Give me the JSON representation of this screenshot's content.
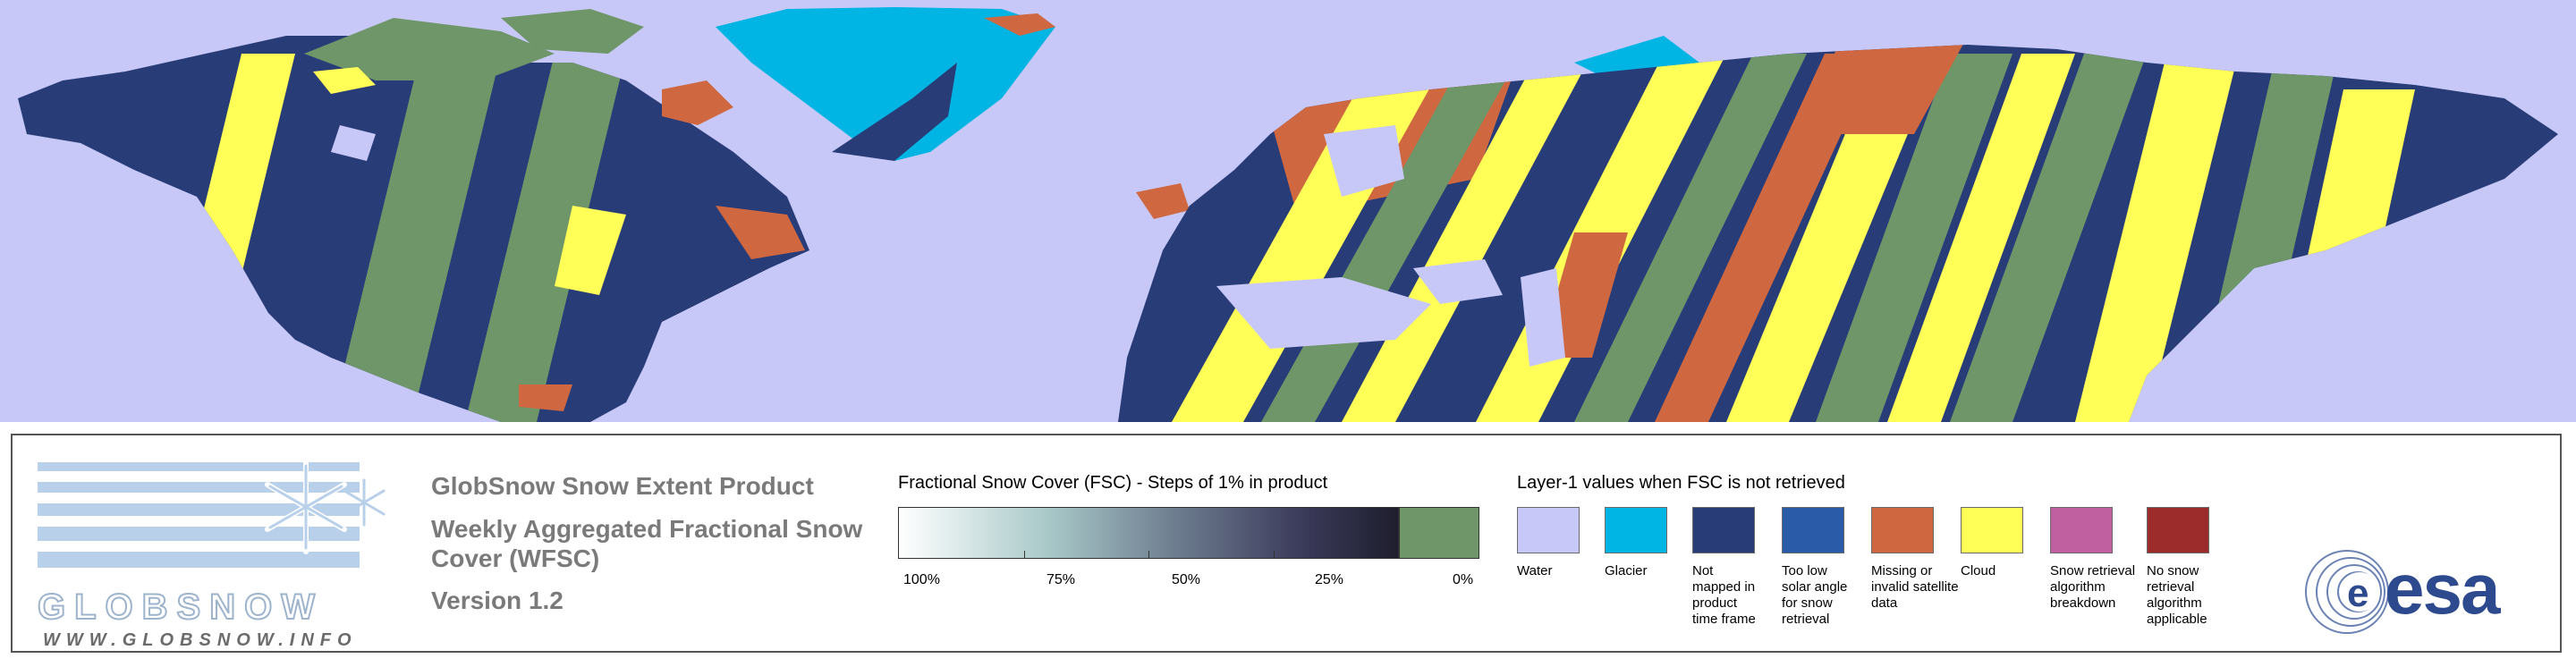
{
  "map": {
    "colors": {
      "water": "#c8c8f8",
      "glacier": "#00b4e4",
      "not_mapped": "#283c78",
      "too_low_solar": "#2a5ba8",
      "missing_invalid": "#cf6840",
      "cloud": "#ffff58",
      "breakdown": "#c060a0",
      "no_snow_retrieval": "#9c2c2c",
      "fsc_zero": "#6e9668"
    }
  },
  "logo": {
    "name": "GLOBSNOW",
    "url": "WWW.GLOBSNOW.INFO"
  },
  "product": {
    "title": "GlobSnow Snow Extent Product",
    "subtitle": "Weekly Aggregated Fractional Snow Cover (WFSC)",
    "version": "Version 1.2"
  },
  "fsc_scale": {
    "title": "Fractional Snow Cover (FSC) - Steps of 1% in product",
    "ticks": [
      "100%",
      "75%",
      "50%",
      "25%",
      "0%"
    ],
    "gradient_start": "#ffffff",
    "gradient_end": "#1e1e2e",
    "zero_color": "#6e9668"
  },
  "layer1": {
    "title": "Layer-1 values when FSC is not retrieved",
    "items": [
      {
        "label": "Water",
        "color": "#c8c8f8"
      },
      {
        "label": "Glacier",
        "color": "#00b4e4"
      },
      {
        "label": "Not mapped in product time frame",
        "color": "#283c78"
      },
      {
        "label": "Too low solar angle for snow retrieval",
        "color": "#2a5ba8"
      },
      {
        "label": "Missing or invalid satellite data",
        "color": "#cf6840"
      },
      {
        "label": "Cloud",
        "color": "#ffff58"
      },
      {
        "label": "Snow retrieval algorithm breakdown",
        "color": "#c060a0"
      },
      {
        "label": "No snow retrieval algorithm applicable",
        "color": "#9c2c2c"
      }
    ]
  },
  "esa_logo": {
    "text": "esa"
  }
}
